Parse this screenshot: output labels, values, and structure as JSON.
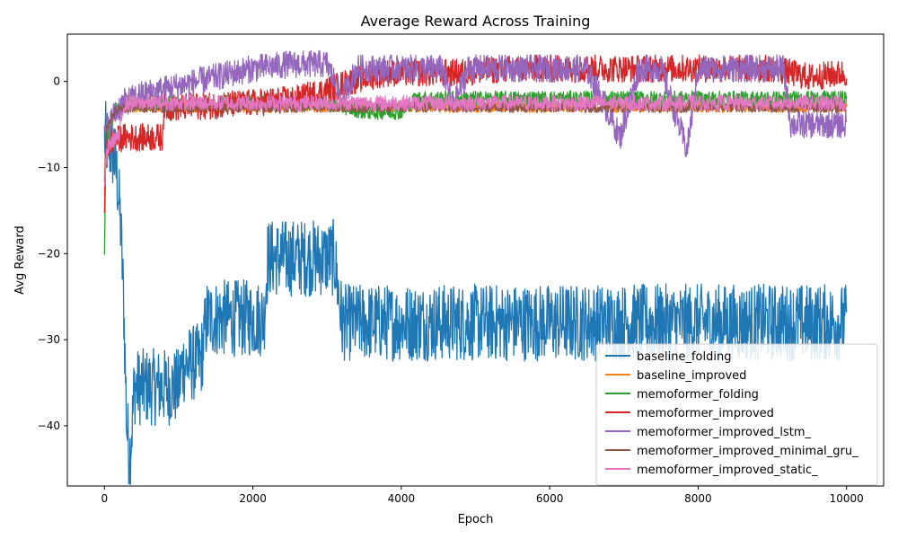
{
  "chart_data": {
    "type": "line",
    "title": "Average Reward Across Training",
    "xlabel": "Epoch",
    "ylabel": "Avg Reward",
    "xlim": [
      -500,
      10500
    ],
    "ylim": [
      -47,
      5.5
    ],
    "xticks": [
      0,
      2000,
      4000,
      6000,
      8000,
      10000
    ],
    "xtick_labels": [
      "0",
      "2000",
      "4000",
      "6000",
      "8000",
      "10000"
    ],
    "yticks": [
      0,
      -10,
      -20,
      -30,
      -40
    ],
    "ytick_labels": [
      "0",
      "−10",
      "−20",
      "−30",
      "−40"
    ],
    "grid": false,
    "legend_position": "lower-right",
    "series": [
      {
        "name": "baseline_folding",
        "color": "#1f77b4",
        "x": [
          0,
          30,
          60,
          100,
          140,
          180,
          220,
          260,
          300,
          340,
          380,
          400,
          600,
          800,
          1000,
          1050,
          1300,
          1380,
          1600,
          1900,
          2150,
          2200,
          2500,
          2800,
          3100,
          3200,
          4000,
          5000,
          6000,
          7000,
          8000,
          9000,
          10000
        ],
        "y": [
          -6.5,
          -7,
          -7.5,
          -8,
          -9,
          -12,
          -17,
          -26,
          -40,
          -43.5,
          -39,
          -35.5,
          -35.5,
          -35.5,
          -35.5,
          -33,
          -32.5,
          -27.5,
          -27.5,
          -27.5,
          -27.5,
          -20.5,
          -20.5,
          -20.5,
          -20.5,
          -28,
          -28,
          -28,
          -28,
          -28,
          -28,
          -28,
          -28
        ]
      },
      {
        "name": "baseline_improved",
        "color": "#ff7f0e",
        "x": [
          0,
          20,
          60,
          150,
          300,
          800,
          2000,
          4000,
          6000,
          8000,
          10000
        ],
        "y": [
          -13,
          -6,
          -5.5,
          -4,
          -3,
          -3,
          -3,
          -3,
          -3,
          -3,
          -3
        ]
      },
      {
        "name": "memoformer_folding",
        "color": "#2ca02c",
        "x": [
          0,
          20,
          60,
          150,
          300,
          800,
          2000,
          3000,
          3500,
          4000,
          4200,
          5000,
          6000,
          7000,
          8000,
          9000,
          10000
        ],
        "y": [
          -20,
          -7,
          -6,
          -3,
          -2.5,
          -2.5,
          -2.5,
          -2.5,
          -3.5,
          -3.5,
          -2,
          -2,
          -2,
          -2,
          -2,
          -2,
          -2
        ]
      },
      {
        "name": "memoformer_improved",
        "color": "#d62728",
        "x": [
          0,
          30,
          100,
          250,
          400,
          600,
          780,
          800,
          1000,
          2000,
          2600,
          3000,
          3300,
          3800,
          4700,
          5500,
          6500,
          7500,
          8000,
          9000,
          9500,
          10000
        ],
        "y": [
          -14,
          -7.5,
          -7,
          -6.5,
          -6.5,
          -6.5,
          -6.5,
          -3,
          -3,
          -2.5,
          -2,
          -1,
          0,
          1,
          1,
          1.5,
          1.5,
          1.5,
          1.5,
          1.5,
          0.5,
          1
        ]
      },
      {
        "name": "memoformer_improved_lstm_",
        "color": "#9467bd",
        "x": [
          0,
          20,
          60,
          150,
          250,
          500,
          1000,
          1500,
          2000,
          2500,
          3000,
          3100,
          3200,
          3400,
          4000,
          4550,
          4700,
          4900,
          5500,
          5900,
          6500,
          6950,
          7200,
          7500,
          7850,
          8000,
          8500,
          9000,
          9150,
          9250,
          9600,
          10000
        ],
        "y": [
          -6.5,
          -6,
          -5,
          -3.5,
          -2.5,
          -1.5,
          -0.5,
          0.5,
          1.5,
          2,
          2,
          0,
          -2,
          1.5,
          1.5,
          1.5,
          -3,
          1.5,
          1.5,
          1.5,
          1.5,
          -6.5,
          1.5,
          1.5,
          -8,
          1.5,
          1.5,
          1.5,
          1.5,
          -5,
          -5,
          -5
        ]
      },
      {
        "name": "memoformer_improved_minimal_gru_",
        "color": "#8c564b",
        "x": [
          0,
          20,
          60,
          150,
          300,
          800,
          2000,
          4000,
          6000,
          8000,
          10000
        ],
        "y": [
          -12,
          -6,
          -4.5,
          -3.5,
          -3,
          -3,
          -3,
          -3,
          -3,
          -3,
          -3
        ]
      },
      {
        "name": "memoformer_improved_static_",
        "color": "#e377c2",
        "x": [
          0,
          20,
          60,
          100,
          150,
          200,
          250,
          300,
          500,
          1000,
          2000,
          4000,
          6000,
          8000,
          10000
        ],
        "y": [
          -13,
          -9,
          -7.5,
          -7,
          -6.5,
          -6.5,
          -3,
          -2.5,
          -2.5,
          -2.5,
          -2.5,
          -2.5,
          -2.5,
          -2.5,
          -2.5
        ]
      }
    ]
  }
}
